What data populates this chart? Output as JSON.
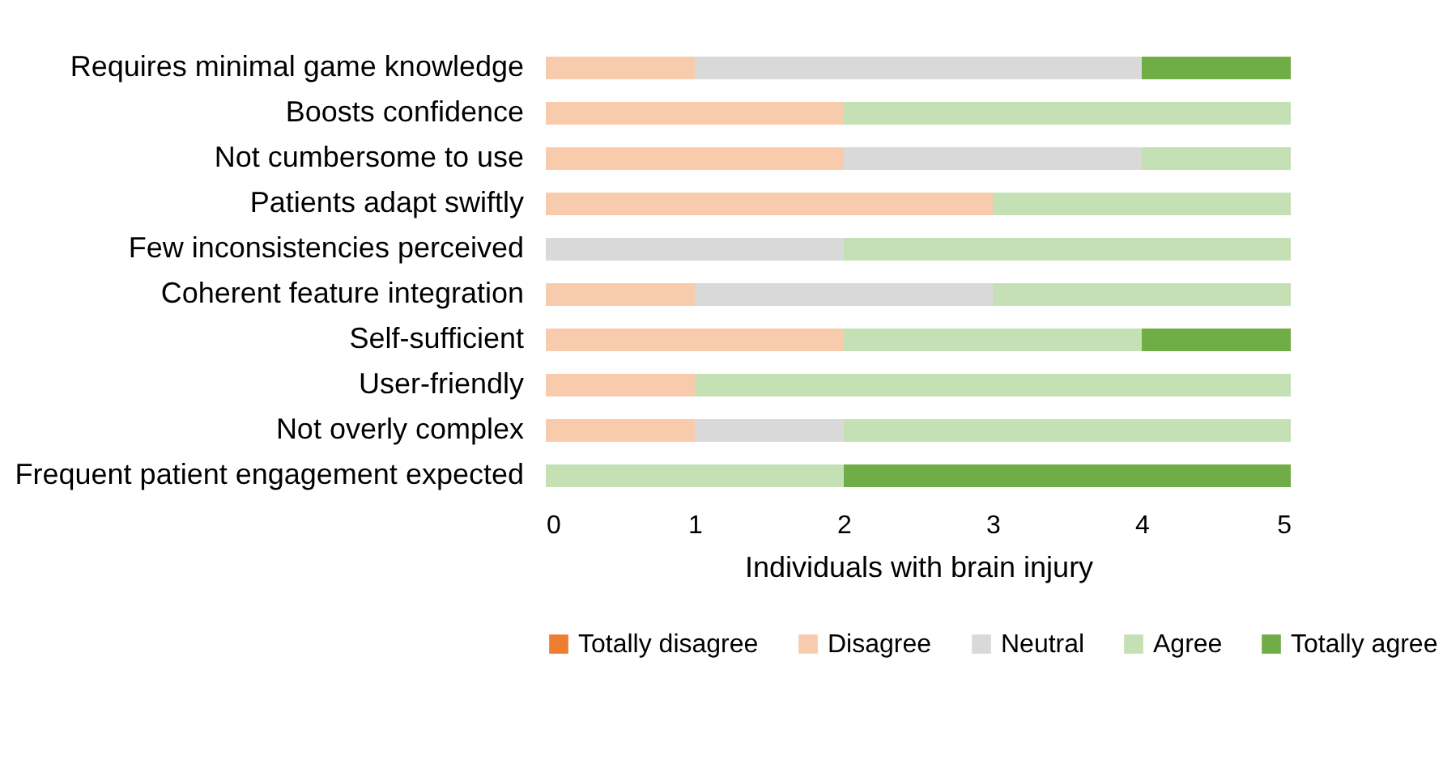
{
  "chart_data": {
    "type": "bar",
    "orientation": "horizontal",
    "stacked": true,
    "xlabel": "Individuals with brain injury",
    "categories": [
      "Requires minimal game knowledge",
      "Boosts confidence",
      "Not cumbersome to use",
      "Patients adapt swiftly",
      "Few inconsistencies perceived",
      "Coherent feature integration",
      "Self-sufficient ",
      "User-friendly",
      "Not overly complex",
      "Frequent patient engagement expected"
    ],
    "series": [
      {
        "name": "Totally disagree",
        "color": "#ed7d31",
        "values": [
          0,
          0,
          0,
          0,
          0,
          0,
          0,
          0,
          0,
          0
        ]
      },
      {
        "name": "Disagree",
        "color": "#f8cbad",
        "values": [
          1,
          2,
          2,
          3,
          0,
          1,
          2,
          1,
          1,
          0
        ]
      },
      {
        "name": "Neutral",
        "color": "#d9d9d9",
        "values": [
          3,
          0,
          2,
          0,
          2,
          2,
          0,
          0,
          1,
          0
        ]
      },
      {
        "name": "Agree",
        "color": "#c5e0b4",
        "values": [
          0,
          3,
          1,
          2,
          3,
          2,
          2,
          4,
          3,
          2
        ]
      },
      {
        "name": "Totally agree",
        "color": "#70ad47",
        "values": [
          1,
          0,
          0,
          0,
          0,
          0,
          1,
          0,
          0,
          3
        ]
      }
    ],
    "xlim": [
      0,
      5
    ],
    "xticks": [
      0,
      1,
      2,
      3,
      4,
      5
    ],
    "grid": false,
    "legend": "bottom"
  }
}
